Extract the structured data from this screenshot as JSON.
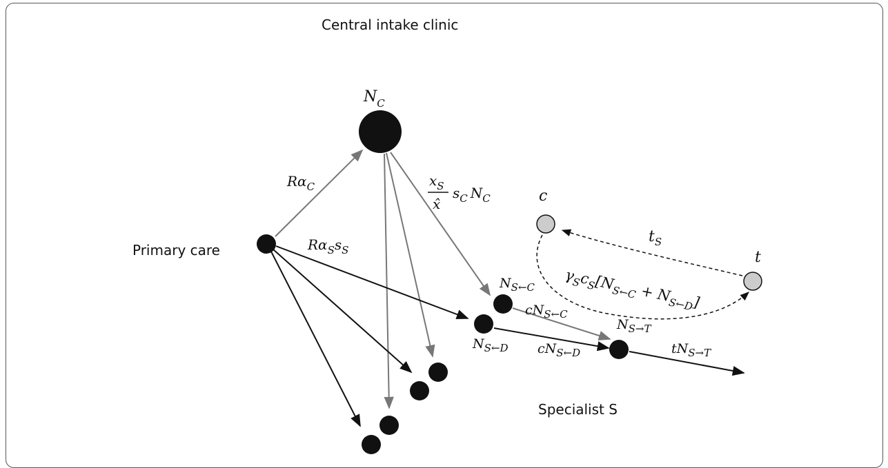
{
  "regions": {
    "central": "Central intake clinic",
    "primary": "Primary care",
    "specialist": "Specialist S"
  },
  "node_labels": {
    "nc": {
      "main": "N",
      "sub": "C"
    },
    "nsc": {
      "main": "N",
      "sub": "S←C"
    },
    "nsd": {
      "main": "N",
      "sub": "S←D"
    },
    "nst": {
      "main": "N",
      "sub": "S→T"
    },
    "c": "c",
    "t": "t"
  },
  "edge_labels": {
    "r_alpha_c": {
      "pre": "Rα",
      "sub": "C"
    },
    "r_alpha_s_s_s": {
      "a": "Rα",
      "sub1": "S",
      "b": "s",
      "sub2": "S"
    },
    "xs_over_xhat": {
      "num": "x",
      "num_sub": "S",
      "den": "x̂",
      "tail1": "s",
      "tail1_sub": "C",
      "tail2": "N",
      "tail2_sub": "C"
    },
    "c_nsc": {
      "pre": "cN",
      "sub": "S←C"
    },
    "c_nsd": {
      "pre": "cN",
      "sub": "S←D"
    },
    "t_nst": {
      "pre": "tN",
      "sub": "S→T"
    },
    "ts": {
      "pre": "t",
      "sub": "S"
    },
    "gamma": {
      "g": "γ",
      "gsub": "S",
      "c": "c",
      "csub": "S",
      "open": "[N",
      "s1": "S←C",
      "plus": " + N",
      "s2": "S←D",
      "close": "]"
    }
  },
  "colors": {
    "black": "#111111",
    "gray_edge": "#777777",
    "gray_node": "#cccccc"
  }
}
